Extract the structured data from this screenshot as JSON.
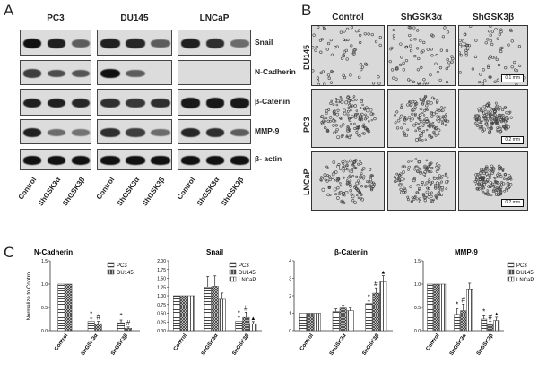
{
  "panel_a": {
    "letter": "A",
    "cell_lines": [
      "PC3",
      "DU145",
      "LNCaP"
    ],
    "proteins": [
      "Snail",
      "N-Cadherin",
      "β-Catenin",
      "MMP-9",
      "β- actin"
    ],
    "lanes": [
      "Control",
      "ShGSK3α",
      "ShGSK3β"
    ]
  },
  "panel_b": {
    "letter": "B",
    "columns": [
      "Control",
      "ShGSK3α",
      "ShGSK3β"
    ],
    "rows": [
      "DU145",
      "PC3",
      "LNCaP"
    ],
    "scale_label": "0.2 mm",
    "scale_label_top": "0.1 mm"
  },
  "panel_c": {
    "letter": "C"
  },
  "chart_data": [
    {
      "type": "bar",
      "title": "N-Cadherin",
      "ylabel": "Normalize to Control",
      "ylim": [
        0,
        1.5
      ],
      "yticks": [
        "0.0",
        "0.5",
        "1.0",
        "1.5"
      ],
      "categories": [
        "Control",
        "ShGSK3α",
        "ShGSK3β"
      ],
      "series": [
        {
          "name": "PC3",
          "values": [
            1.0,
            0.2,
            0.17
          ],
          "errors": [
            0,
            0.07,
            0.06
          ]
        },
        {
          "name": "DU145",
          "values": [
            1.0,
            0.15,
            0.05
          ],
          "errors": [
            0,
            0.05,
            0.03
          ]
        }
      ],
      "marks": [
        [
          "",
          "*",
          "*"
        ],
        [
          "",
          "#",
          "#"
        ]
      ]
    },
    {
      "type": "bar",
      "title": "Snail",
      "ylabel": "",
      "ylim": [
        0,
        2.0
      ],
      "yticks": [
        "0.00",
        "0.25",
        "0.50",
        "0.75",
        "1.00",
        "1.25",
        "1.50",
        "1.75",
        "2.00"
      ],
      "categories": [
        "Control",
        "ShGSK3α",
        "ShGSK3β"
      ],
      "series": [
        {
          "name": "PC3",
          "values": [
            1.0,
            1.25,
            0.27
          ],
          "errors": [
            0,
            0.3,
            0.12
          ]
        },
        {
          "name": "DU145",
          "values": [
            1.0,
            1.27,
            0.38
          ],
          "errors": [
            0,
            0.3,
            0.15
          ]
        },
        {
          "name": "LNCaP",
          "values": [
            1.0,
            0.9,
            0.2
          ],
          "errors": [
            0,
            0.18,
            0.06
          ]
        }
      ],
      "marks": [
        [
          "",
          "",
          "*"
        ],
        [
          "",
          "",
          "#"
        ],
        [
          "",
          "",
          "▲"
        ]
      ]
    },
    {
      "type": "bar",
      "title": "β-Catenin",
      "ylabel": "",
      "ylim": [
        0,
        4
      ],
      "yticks": [
        "0",
        "1",
        "2",
        "3",
        "4"
      ],
      "categories": [
        "Control",
        "ShGSK3α",
        "ShGSK3β"
      ],
      "series": [
        {
          "name": "PC3",
          "values": [
            1.0,
            1.1,
            1.55
          ],
          "errors": [
            0,
            0.15,
            0.15
          ]
        },
        {
          "name": "DU145",
          "values": [
            1.0,
            1.3,
            2.15
          ],
          "errors": [
            0,
            0.15,
            0.3
          ]
        },
        {
          "name": "LNCaP",
          "values": [
            1.0,
            1.15,
            2.8
          ],
          "errors": [
            0,
            0.15,
            0.35
          ]
        }
      ],
      "marks": [
        [
          "",
          "",
          "*"
        ],
        [
          "",
          "",
          "#"
        ],
        [
          "",
          "",
          "▲"
        ]
      ]
    },
    {
      "type": "bar",
      "title": "MMP-9",
      "ylabel": "",
      "ylim": [
        0,
        1.5
      ],
      "yticks": [
        "0.0",
        "0.5",
        "1.0",
        "1.5"
      ],
      "categories": [
        "Control",
        "ShGSK3α",
        "ShGSK3β"
      ],
      "series": [
        {
          "name": "PC3",
          "values": [
            1.0,
            0.35,
            0.25
          ],
          "errors": [
            0,
            0.12,
            0.07
          ]
        },
        {
          "name": "DU145",
          "values": [
            1.0,
            0.43,
            0.15
          ],
          "errors": [
            0,
            0.14,
            0.05
          ]
        },
        {
          "name": "LNCaP",
          "values": [
            1.0,
            0.88,
            0.22
          ],
          "errors": [
            0,
            0.14,
            0.07
          ]
        }
      ],
      "marks": [
        [
          "",
          "*",
          "*"
        ],
        [
          "",
          "#",
          "#"
        ],
        [
          "",
          "",
          "▲"
        ]
      ]
    }
  ]
}
